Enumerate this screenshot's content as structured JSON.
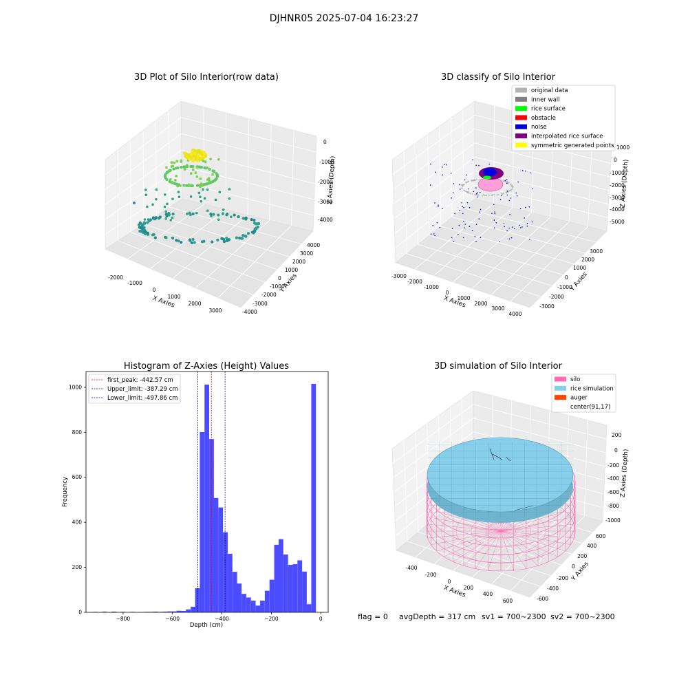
{
  "suptitle": "DJHNR05 2025-07-04 16:23:27",
  "panel1": {
    "title": "3D Plot of Silo Interior(row data)",
    "xlabel": "X Axies",
    "ylabel": "Y Axies",
    "zlabel": "Z Axies (Depth)",
    "xticks": [
      "-2000",
      "-1000",
      "0",
      "1000",
      "2000",
      "3000"
    ],
    "yticks": [
      "-4000",
      "-3000",
      "-2000",
      "-1000",
      "0",
      "1000",
      "2000",
      "3000",
      "4000"
    ],
    "zticks": [
      "0",
      "-1000",
      "-2000",
      "-3000",
      "-4000"
    ]
  },
  "panel2": {
    "title": "3D classify of Silo Interior",
    "xlabel": "X Axies",
    "ylabel": "Y Axies",
    "zlabel": "Z Axies (Depth)",
    "xticks": [
      "-3000",
      "-2000",
      "-1000",
      "0",
      "1000",
      "2000",
      "3000",
      "4000"
    ],
    "yticks": [
      "-3000",
      "-2000",
      "-1000",
      "0",
      "1000",
      "2000",
      "3000"
    ],
    "zticks": [
      "1000",
      "0",
      "-1000",
      "-2000",
      "-3000",
      "-4000",
      "-5000"
    ],
    "legend": [
      {
        "label": "original data",
        "color": "#b3b3b3"
      },
      {
        "label": "inner wall",
        "color": "#808080"
      },
      {
        "label": "rice surface",
        "color": "#00ff00"
      },
      {
        "label": "obstacle",
        "color": "#ff0000"
      },
      {
        "label": "noise",
        "color": "#0000dd"
      },
      {
        "label": "interpolated rice surface",
        "color": "#800080"
      },
      {
        "label": "symmetric generated points",
        "color": "#ffff00"
      }
    ]
  },
  "panel3": {
    "title": "3D simulation of Silo Interior",
    "xlabel": "X Axies",
    "ylabel": "Y Axies",
    "zlabel": "Z Axies (Depth)",
    "xticks": [
      "-400",
      "-200",
      "0",
      "200",
      "400",
      "600"
    ],
    "yticks": [
      "-600",
      "-400",
      "-200",
      "0",
      "200",
      "400",
      "600"
    ],
    "zticks": [
      "200",
      "0",
      "-200",
      "-400",
      "-600",
      "-800",
      "-1000"
    ],
    "legend": [
      {
        "label": "silo",
        "color": "#ff69b4"
      },
      {
        "label": "rice simulation",
        "color": "#87ceeb"
      },
      {
        "label": "auger",
        "color": "#ff4500"
      },
      {
        "label": "center(91,17)",
        "color": ""
      }
    ]
  },
  "footer": {
    "flag": "flag = 0",
    "avg": "avgDepth = 317 cm",
    "sv1": "sv1 = 700~2300",
    "sv2": "sv2 = 700~2300"
  },
  "chart_data": [
    {
      "type": "scatter",
      "title": "3D Plot of Silo Interior(row data)",
      "xlabel": "X Axies",
      "ylabel": "Y Axies",
      "zlabel": "Z Axies (Depth)",
      "xlim": [
        -2500,
        3500
      ],
      "ylim": [
        -4000,
        4000
      ],
      "zlim": [
        -4500,
        300
      ]
    },
    {
      "type": "scatter",
      "title": "3D classify of Silo Interior",
      "xlabel": "X Axies",
      "ylabel": "Y Axies",
      "zlabel": "Z Axies (Depth)",
      "xlim": [
        -3000,
        4000
      ],
      "ylim": [
        -3500,
        3500
      ],
      "zlim": [
        -5500,
        1000
      ],
      "legend_position": "top-right"
    },
    {
      "type": "bar",
      "title": "Histogram of Z-Axies (Height) Values",
      "xlabel": "Depth (cm)",
      "ylabel": "Frequency",
      "xlim": [
        -950,
        30
      ],
      "ylim": [
        0,
        1070
      ],
      "xticks": [
        -800,
        -600,
        -400,
        -200,
        0
      ],
      "yticks": [
        0,
        200,
        400,
        600,
        800,
        1000
      ],
      "bin_width": 18.8,
      "bin_centers": [
        -912,
        -875,
        -837,
        -800,
        -762,
        -706,
        -687,
        -668,
        -649,
        -630,
        -611,
        -593,
        -574,
        -555,
        -536,
        -517,
        -499,
        -480,
        -461,
        -442,
        -424,
        -405,
        -386,
        -367,
        -348,
        -330,
        -311,
        -292,
        -273,
        -254,
        -236,
        -217,
        -198,
        -179,
        -161,
        -142,
        -123,
        -104,
        -85,
        -66,
        -48,
        -29,
        -10
      ],
      "counts": [
        2,
        3,
        3,
        2,
        2,
        2,
        2,
        3,
        2,
        3,
        4,
        4,
        7,
        6,
        13,
        25,
        107,
        801,
        1012,
        770,
        508,
        466,
        356,
        260,
        180,
        128,
        82,
        66,
        52,
        30,
        52,
        96,
        145,
        300,
        325,
        257,
        211,
        214,
        231,
        181,
        36,
        1015,
        0
      ],
      "lines": [
        {
          "label": "first_peak: -442.57 cm",
          "x": -442.57,
          "color": "#ff0000"
        },
        {
          "label": "Upper_limit: -387.29 cm",
          "x": -387.29,
          "color": "#0000cc"
        },
        {
          "label": "Lower_limit: -497.86 cm",
          "x": -497.86,
          "color": "#0000cc"
        }
      ],
      "bar_color": "#4b4bff",
      "legend_position": "top-left"
    },
    {
      "type": "surface",
      "title": "3D simulation of Silo Interior",
      "xlabel": "X Axies",
      "ylabel": "Y Axies",
      "zlabel": "Z Axies (Depth)",
      "xlim": [
        -500,
        700
      ],
      "ylim": [
        -700,
        700
      ],
      "zlim": [
        -1050,
        300
      ],
      "legend_position": "top-right"
    }
  ]
}
